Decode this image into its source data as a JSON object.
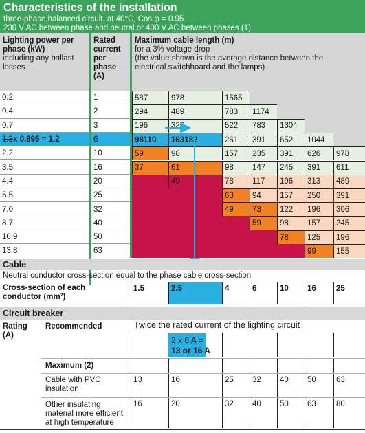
{
  "header": {
    "title": "Characteristics of the installation",
    "line1": "three-phase balanced circuit, at 40°C, Cos φ = 0.95",
    "line2": "230 V AC between phase and neutral or 400 V AC between phases (1)"
  },
  "columns": {
    "power": [
      "Lighting power per",
      "phase (kW)",
      "including any ballast",
      "losses"
    ],
    "current": [
      "Rated",
      "current",
      "per",
      "phase",
      "(A)"
    ],
    "length": [
      "Maximum cable length (m)",
      "for a 3% voltage drop",
      "(the value shown is the average distance between the",
      "electrical switchboard and the lamps)"
    ]
  },
  "rows": [
    {
      "power": "0.2",
      "current": "1",
      "lengths": [
        "587",
        "978",
        "1565",
        "",
        "",
        "",
        ""
      ]
    },
    {
      "power": "0.4",
      "current": "2",
      "lengths": [
        "294",
        "489",
        "783",
        "1174",
        "",
        "",
        ""
      ]
    },
    {
      "power": "0.7",
      "current": "3",
      "lengths": [
        "196",
        "326",
        "522",
        "783",
        "1304",
        "",
        ""
      ]
    },
    {
      "power_struck": "1.3",
      "power": " x 0.895 = 1.2",
      "current": "6",
      "lengths": [
        "98",
        "163",
        "261",
        "391",
        "652",
        "1044",
        ""
      ],
      "corrected": [
        "110",
        "182"
      ]
    },
    {
      "power": "2.2",
      "current": "10",
      "lengths": [
        "59",
        "98",
        "157",
        "235",
        "391",
        "626",
        "978"
      ]
    },
    {
      "power": "3.5",
      "current": "16",
      "lengths": [
        "37",
        "61",
        "98",
        "147",
        "245",
        "391",
        "611"
      ]
    },
    {
      "power": "4.4",
      "current": "20",
      "lengths": [
        "",
        "49",
        "78",
        "117",
        "196",
        "313",
        "489"
      ]
    },
    {
      "power": "5.5",
      "current": "25",
      "lengths": [
        "",
        "",
        "63",
        "94",
        "157",
        "250",
        "391"
      ]
    },
    {
      "power": "7.0",
      "current": "32",
      "lengths": [
        "",
        "",
        "49",
        "73",
        "122",
        "196",
        "306"
      ]
    },
    {
      "power": "8.7",
      "current": "40",
      "lengths": [
        "",
        "",
        "",
        "59",
        "98",
        "157",
        "245"
      ]
    },
    {
      "power": "10.9",
      "current": "50",
      "lengths": [
        "",
        "",
        "",
        "",
        "78",
        "125",
        "196"
      ]
    },
    {
      "power": "13.8",
      "current": "63",
      "lengths": [
        "",
        "",
        "",
        "",
        "",
        "99",
        "155"
      ]
    }
  ],
  "cable": {
    "title": "Cable",
    "note": "Neutral conductor cross-section equal to the phase cable cross-section",
    "cs_label": [
      "Cross-section of each",
      "conductor (mm²)"
    ],
    "sections": [
      "1.5",
      "2.5",
      "4",
      "6",
      "10",
      "16",
      "25"
    ]
  },
  "breaker": {
    "title": "Circuit breaker",
    "rating_label": [
      "Rating",
      "(A)"
    ],
    "recommended_label": "Recommended",
    "recommended_text": "Twice the rated current of the lighting circuit",
    "recommended_value": [
      "2 x 6 A =",
      "13 or 16 A"
    ],
    "maximum_label": "Maximum (2)",
    "pvc_label": [
      "Cable with PVC",
      "insulation"
    ],
    "pvc_values": [
      "13",
      "16",
      "25",
      "32",
      "40",
      "50",
      "63"
    ],
    "other_label": [
      "Other insulating",
      "material more efficient",
      "at high temperature"
    ],
    "other_values": [
      "16",
      "20",
      "32",
      "40",
      "50",
      "63",
      "80"
    ]
  },
  "colors": {
    "header": "#3ba35a",
    "gray": "#d6d6d6",
    "pale_green": "#e7f1e3",
    "peach": "#fbd8c1",
    "orange": "#f08223",
    "crimson": "#c8124a",
    "highlight_blue": "#29b0e3"
  }
}
